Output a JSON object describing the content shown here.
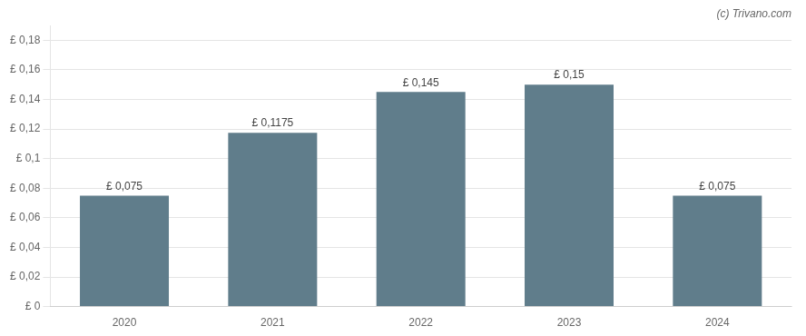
{
  "chart_data": {
    "type": "bar",
    "categories": [
      "2020",
      "2021",
      "2022",
      "2023",
      "2024"
    ],
    "values": [
      0.075,
      0.1175,
      0.145,
      0.15,
      0.075
    ],
    "value_labels": [
      "£ 0,075",
      "£ 0,1175",
      "£ 0,145",
      "£ 0,15",
      "£ 0,075"
    ],
    "data_labels": true,
    "color": "#607d8b",
    "ylim": [
      0,
      0.19
    ],
    "yticks": [
      {
        "value": 0,
        "label": "£ 0"
      },
      {
        "value": 0.02,
        "label": "£ 0,02"
      },
      {
        "value": 0.04,
        "label": "£ 0,04"
      },
      {
        "value": 0.06,
        "label": "£ 0,06"
      },
      {
        "value": 0.08,
        "label": "£ 0,08"
      },
      {
        "value": 0.1,
        "label": "£ 0,1"
      },
      {
        "value": 0.12,
        "label": "£ 0,12"
      },
      {
        "value": 0.14,
        "label": "£ 0,14"
      },
      {
        "value": 0.16,
        "label": "£ 0,16"
      },
      {
        "value": 0.18,
        "label": "£ 0,18"
      }
    ],
    "grid": true,
    "annotations": [
      "(c) Trivano.com"
    ]
  }
}
